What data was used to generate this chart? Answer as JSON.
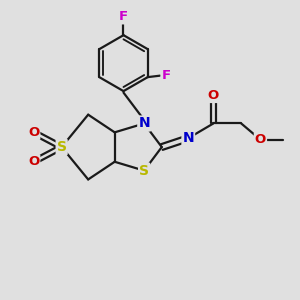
{
  "bg_color": "#e0e0e0",
  "bond_color": "#1a1a1a",
  "bond_width": 1.6,
  "S_color": "#b8b800",
  "N_color": "#0000cc",
  "O_color": "#cc0000",
  "F_color": "#cc00cc",
  "figsize": [
    3.0,
    3.0
  ],
  "dpi": 100,
  "xlim": [
    0,
    10
  ],
  "ylim": [
    0,
    10
  ]
}
